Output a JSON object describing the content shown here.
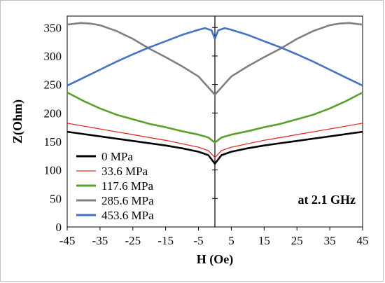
{
  "chart_data": {
    "type": "line",
    "title": "",
    "xlabel": "H (Oe)",
    "ylabel": "Z(Ohm)",
    "xlim": [
      -45,
      45
    ],
    "ylim": [
      0,
      370
    ],
    "xticks": [
      -45,
      -35,
      -25,
      -15,
      -5,
      5,
      15,
      25,
      35,
      45
    ],
    "yticks": [
      0,
      50,
      100,
      150,
      200,
      250,
      300,
      350
    ],
    "grid": false,
    "legend_position": "bottom-left",
    "annotation": "at 2.1 GHz",
    "series": [
      {
        "name": "0 MPa",
        "color": "#000000",
        "x": [
          -45,
          -40,
          -35,
          -30,
          -25,
          -20,
          -15,
          -10,
          -5,
          -2,
          0,
          2,
          5,
          10,
          15,
          20,
          25,
          30,
          35,
          40,
          45
        ],
        "y": [
          167,
          163,
          159,
          155,
          151,
          147,
          143,
          138,
          132,
          126,
          111,
          126,
          132,
          138,
          143,
          147,
          151,
          155,
          159,
          163,
          167
        ]
      },
      {
        "name": "33.6 MPa",
        "color": "#e0302a",
        "x": [
          -45,
          -40,
          -35,
          -30,
          -25,
          -20,
          -15,
          -10,
          -5,
          -2,
          0,
          2,
          5,
          10,
          15,
          20,
          25,
          30,
          35,
          40,
          45
        ],
        "y": [
          182,
          177,
          172,
          167,
          162,
          157,
          152,
          146,
          140,
          134,
          122,
          134,
          140,
          146,
          152,
          157,
          162,
          167,
          172,
          177,
          182
        ]
      },
      {
        "name": "117.6 MPa",
        "color": "#5aa02c",
        "x": [
          -45,
          -40,
          -35,
          -30,
          -25,
          -20,
          -15,
          -10,
          -5,
          -2,
          0,
          2,
          5,
          10,
          15,
          20,
          25,
          30,
          35,
          40,
          45
        ],
        "y": [
          236,
          221,
          208,
          197,
          189,
          181,
          175,
          168,
          162,
          157,
          148,
          157,
          162,
          168,
          175,
          181,
          189,
          197,
          208,
          221,
          236
        ]
      },
      {
        "name": "285.6 MPa",
        "color": "#7f7f7f",
        "x": [
          -45,
          -41,
          -38,
          -35,
          -30,
          -25,
          -20,
          -15,
          -10,
          -5,
          -2,
          0,
          2,
          5,
          10,
          15,
          20,
          25,
          30,
          35,
          38,
          41,
          45
        ],
        "y": [
          355,
          358,
          357,
          354,
          344,
          330,
          313,
          298,
          282,
          264,
          245,
          232,
          245,
          264,
          282,
          298,
          313,
          330,
          344,
          354,
          357,
          358,
          355
        ]
      },
      {
        "name": "453.6 MPa",
        "color": "#4472c4",
        "x": [
          -45,
          -40,
          -35,
          -30,
          -25,
          -20,
          -15,
          -10,
          -5,
          -3,
          -1,
          0,
          1,
          3,
          5,
          10,
          15,
          20,
          25,
          30,
          35,
          40,
          45
        ],
        "y": [
          248,
          262,
          276,
          290,
          303,
          315,
          326,
          337,
          346,
          349,
          345,
          330,
          345,
          349,
          346,
          337,
          326,
          315,
          303,
          290,
          276,
          262,
          248
        ]
      }
    ]
  }
}
